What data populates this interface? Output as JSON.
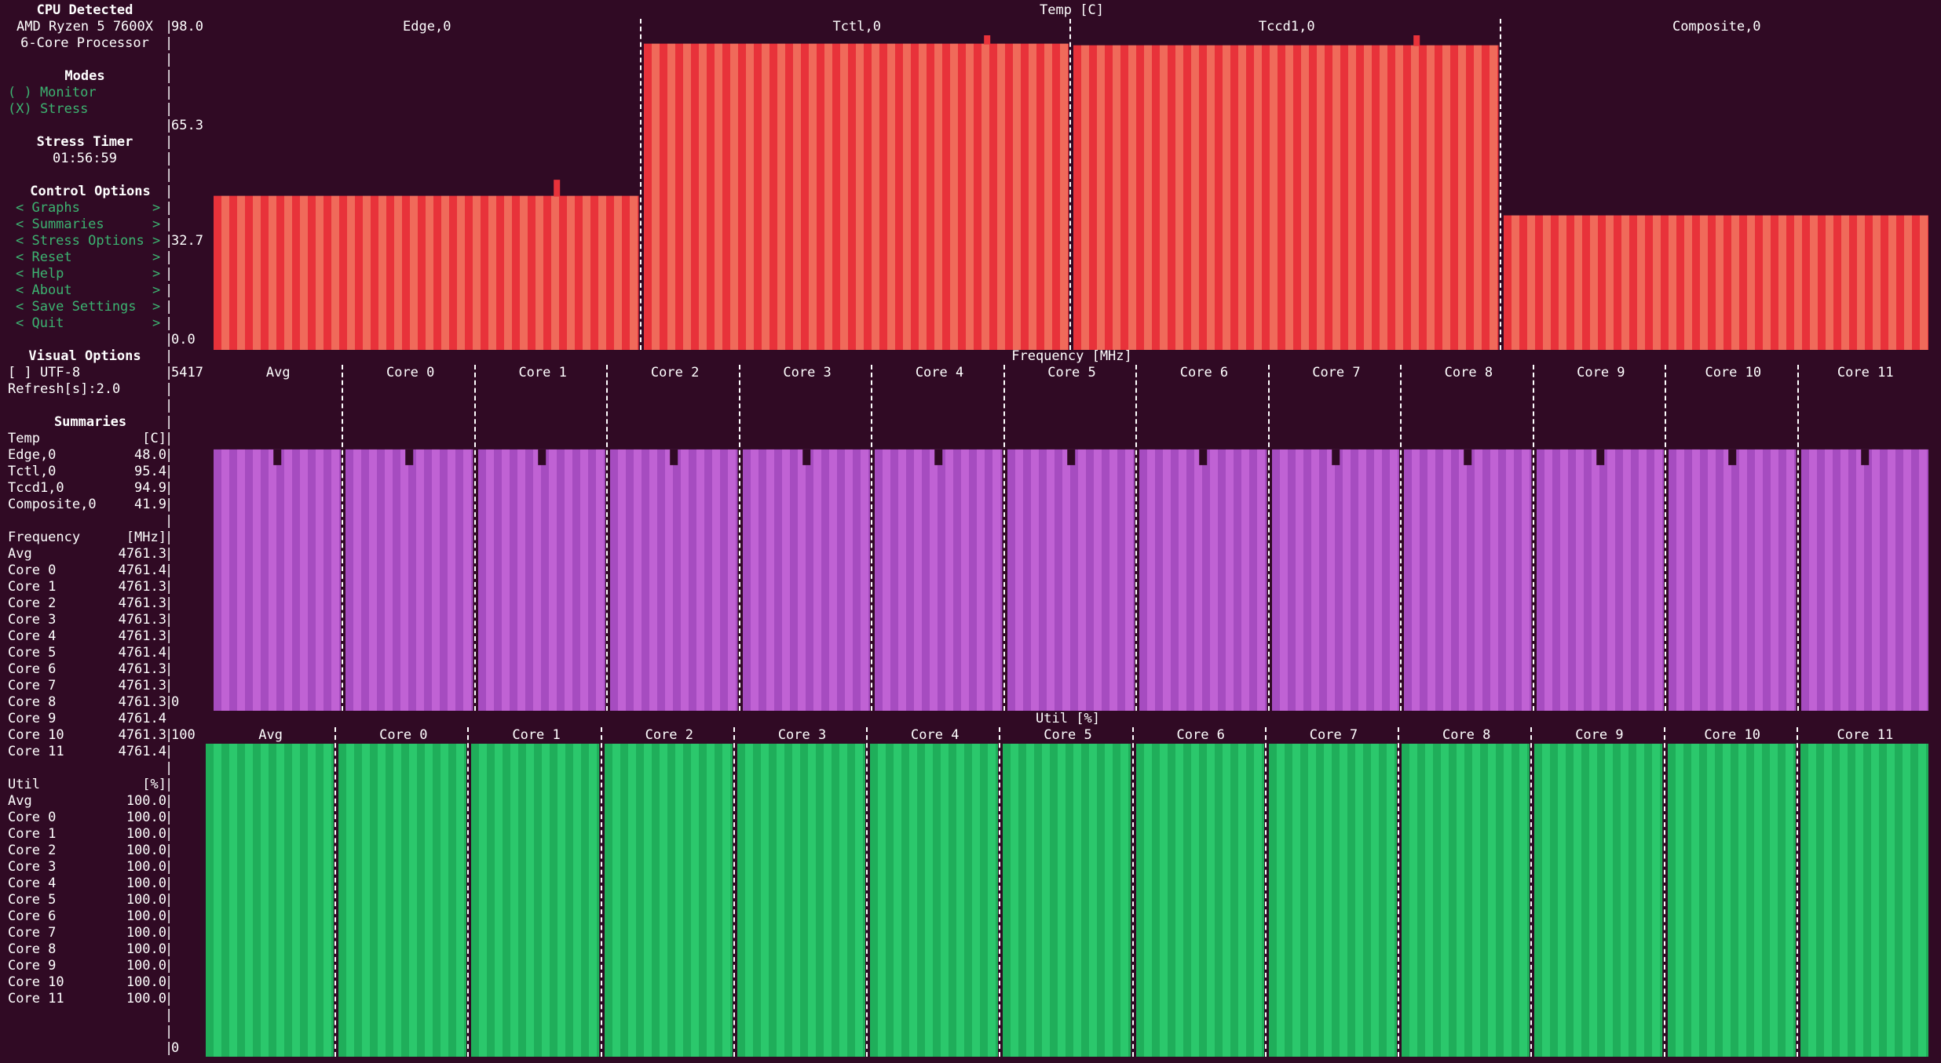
{
  "sidebar": {
    "cpu_header": "CPU Detected",
    "cpu_line1": "AMD Ryzen 5 7600X",
    "cpu_line2": "6-Core Processor",
    "modes_header": "Modes",
    "mode_monitor": "( ) Monitor",
    "mode_stress": "(X) Stress",
    "timer_header": "Stress Timer",
    "timer_value": "01:56:59",
    "control_header": "Control Options",
    "control_items": [
      "< Graphs         >",
      "< Summaries      >",
      "< Stress Options >",
      "< Reset          >",
      "< Help           >",
      "< About          >",
      "< Save Settings  >",
      "< Quit           >"
    ],
    "visual_header": "Visual Options",
    "utf8": "[ ] UTF-8",
    "refresh": "Refresh[s]:2.0",
    "summaries_header": "Summaries",
    "temp_block": {
      "title": "Temp",
      "unit": "[C]",
      "rows": [
        {
          "k": "Edge,0",
          "v": "48.0"
        },
        {
          "k": "Tctl,0",
          "v": "95.4"
        },
        {
          "k": "Tccd1,0",
          "v": "94.9"
        },
        {
          "k": "Composite,0",
          "v": "41.9"
        }
      ]
    },
    "freq_block": {
      "title": "Frequency",
      "unit": "[MHz]",
      "rows": [
        {
          "k": "Avg",
          "v": "4761.3"
        },
        {
          "k": "Core 0",
          "v": "4761.4"
        },
        {
          "k": "Core 1",
          "v": "4761.3"
        },
        {
          "k": "Core 2",
          "v": "4761.3"
        },
        {
          "k": "Core 3",
          "v": "4761.3"
        },
        {
          "k": "Core 4",
          "v": "4761.3"
        },
        {
          "k": "Core 5",
          "v": "4761.4"
        },
        {
          "k": "Core 6",
          "v": "4761.3"
        },
        {
          "k": "Core 7",
          "v": "4761.3"
        },
        {
          "k": "Core 8",
          "v": "4761.3"
        },
        {
          "k": "Core 9",
          "v": "4761.4"
        },
        {
          "k": "Core 10",
          "v": "4761.3"
        },
        {
          "k": "Core 11",
          "v": "4761.4"
        }
      ]
    },
    "util_block": {
      "title": "Util",
      "unit": "[%]",
      "rows": [
        {
          "k": "Avg",
          "v": "100.0"
        },
        {
          "k": "Core 0",
          "v": "100.0"
        },
        {
          "k": "Core 1",
          "v": "100.0"
        },
        {
          "k": "Core 2",
          "v": "100.0"
        },
        {
          "k": "Core 3",
          "v": "100.0"
        },
        {
          "k": "Core 4",
          "v": "100.0"
        },
        {
          "k": "Core 5",
          "v": "100.0"
        },
        {
          "k": "Core 6",
          "v": "100.0"
        },
        {
          "k": "Core 7",
          "v": "100.0"
        },
        {
          "k": "Core 8",
          "v": "100.0"
        },
        {
          "k": "Core 9",
          "v": "100.0"
        },
        {
          "k": "Core 10",
          "v": "100.0"
        },
        {
          "k": "Core 11",
          "v": "100.0"
        }
      ]
    }
  },
  "chart_data": [
    {
      "type": "bar",
      "title": "Temp [C]",
      "yticks": [
        "98.0",
        "65.3",
        "32.7",
        "0.0"
      ],
      "ylim": [
        0,
        98.0
      ],
      "series": [
        {
          "name": "Edge,0",
          "value": 48.0,
          "spike": 53.0
        },
        {
          "name": "Tctl,0",
          "value": 95.4,
          "spike": 98.0
        },
        {
          "name": "Tccd1,0",
          "value": 94.9,
          "spike": 98.0
        },
        {
          "name": "Composite,0",
          "value": 41.9
        }
      ],
      "colors": {
        "a": "#e8323a",
        "b": "#f06a5a",
        "spike": "#e8323a"
      }
    },
    {
      "type": "bar",
      "title": "Frequency [MHz]",
      "yticks": [
        "5417",
        "0"
      ],
      "ylim": [
        0,
        5417
      ],
      "series": [
        {
          "name": "Avg",
          "value": 4761.3
        },
        {
          "name": "Core 0",
          "value": 4761.4
        },
        {
          "name": "Core 1",
          "value": 4761.3
        },
        {
          "name": "Core 2",
          "value": 4761.3
        },
        {
          "name": "Core 3",
          "value": 4761.3
        },
        {
          "name": "Core 4",
          "value": 4761.3
        },
        {
          "name": "Core 5",
          "value": 4761.4
        },
        {
          "name": "Core 6",
          "value": 4761.3
        },
        {
          "name": "Core 7",
          "value": 4761.3
        },
        {
          "name": "Core 8",
          "value": 4761.3
        },
        {
          "name": "Core 9",
          "value": 4761.4
        },
        {
          "name": "Core 10",
          "value": 4761.3
        },
        {
          "name": "Core 11",
          "value": 4761.4
        }
      ],
      "colors": {
        "a": "#a64cc0",
        "b": "#c062d4"
      }
    },
    {
      "type": "bar",
      "title": "Util [%]",
      "yticks": [
        "100",
        "0"
      ],
      "ylim": [
        0,
        100
      ],
      "series": [
        {
          "name": "Avg",
          "value": 100.0
        },
        {
          "name": "Core 0",
          "value": 100.0
        },
        {
          "name": "Core 1",
          "value": 100.0
        },
        {
          "name": "Core 2",
          "value": 100.0
        },
        {
          "name": "Core 3",
          "value": 100.0
        },
        {
          "name": "Core 4",
          "value": 100.0
        },
        {
          "name": "Core 5",
          "value": 100.0
        },
        {
          "name": "Core 6",
          "value": 100.0
        },
        {
          "name": "Core 7",
          "value": 100.0
        },
        {
          "name": "Core 8",
          "value": 100.0
        },
        {
          "name": "Core 9",
          "value": 100.0
        },
        {
          "name": "Core 10",
          "value": 100.0
        },
        {
          "name": "Core 11",
          "value": 100.0
        }
      ],
      "colors": {
        "a": "#1fae5a",
        "b": "#2bc86c"
      }
    }
  ]
}
